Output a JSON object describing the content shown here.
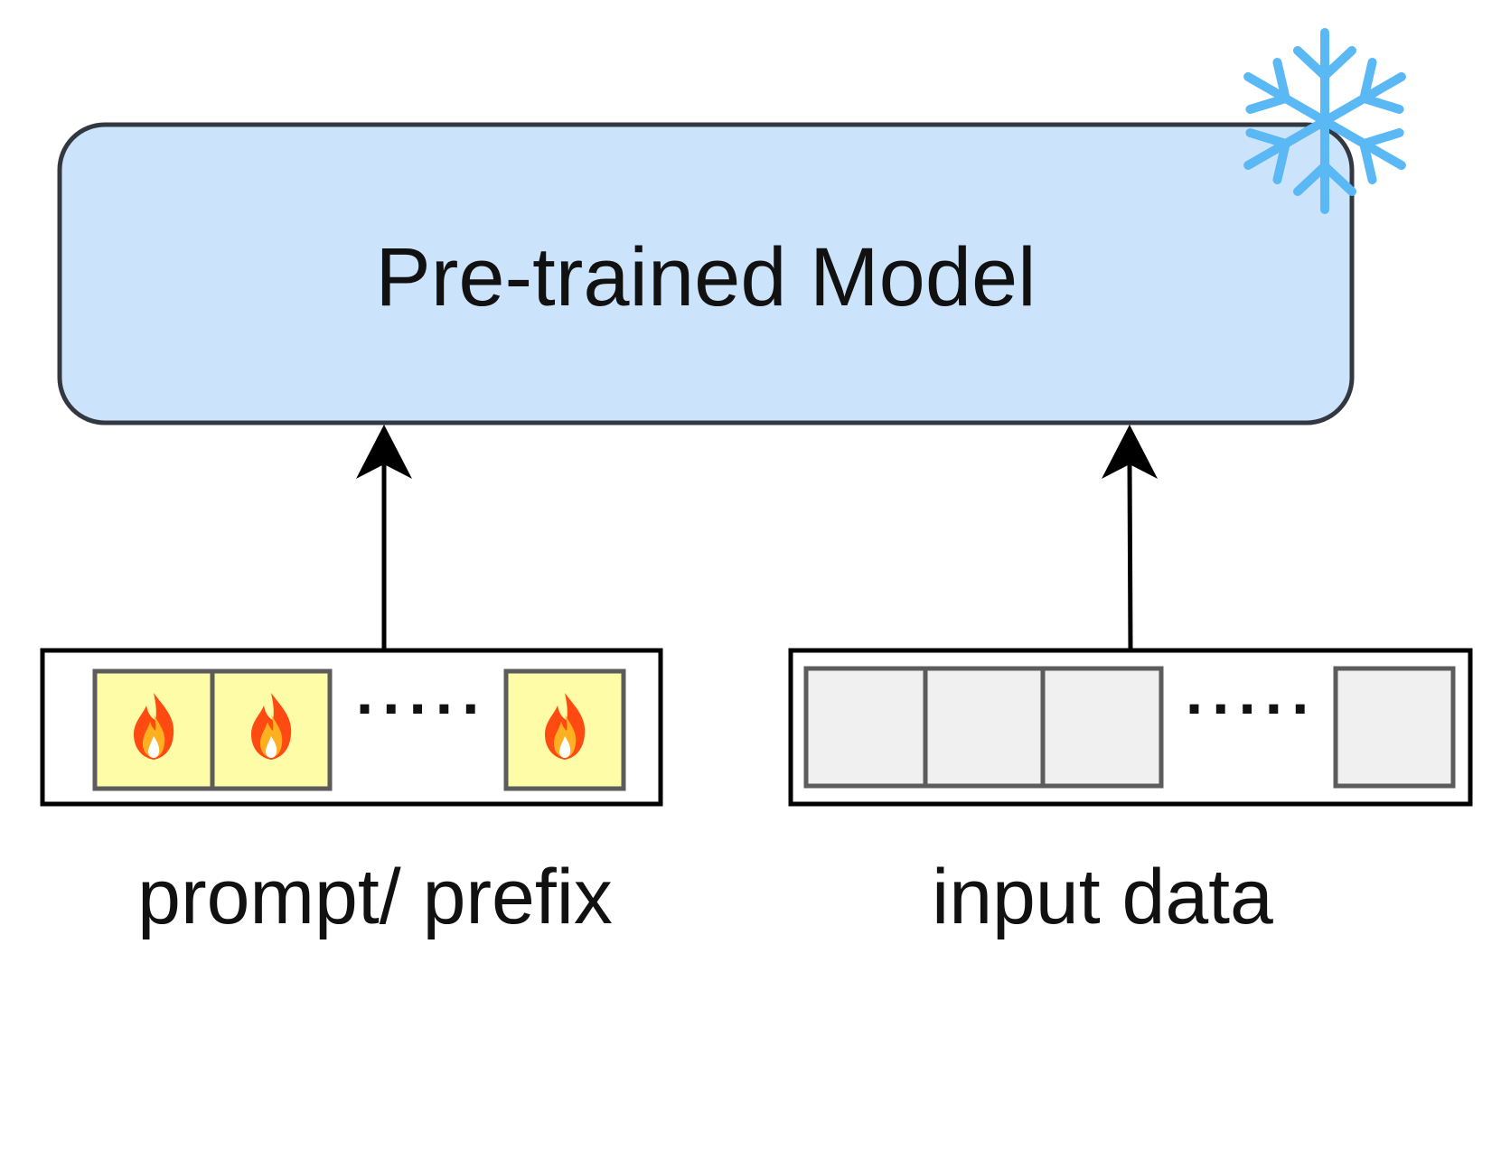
{
  "diagram": {
    "model": {
      "label": "Pre-trained Model",
      "fill_color": "#cce4fb",
      "status_icon": "snowflake-icon",
      "icon_color": "#5ab8f5"
    },
    "inputs": [
      {
        "caption": "prompt/ prefix",
        "token_fill": "#fefca6",
        "token_icon": "fire-icon",
        "ellipsis": "·····"
      },
      {
        "caption": "input data",
        "token_fill": "#f0f0f0",
        "ellipsis": "·····"
      }
    ]
  }
}
